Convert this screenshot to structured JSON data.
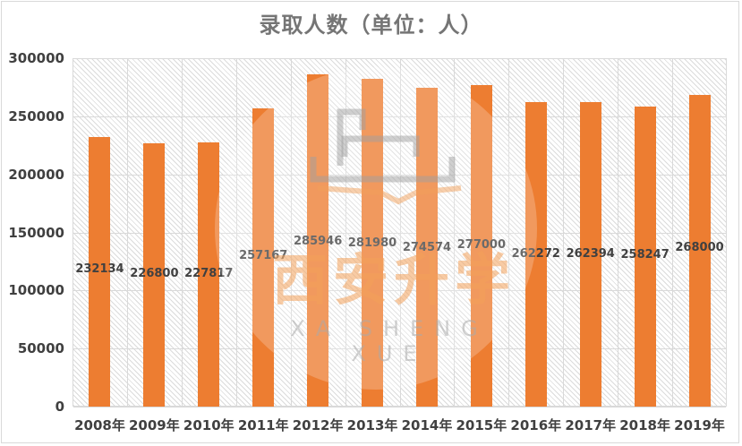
{
  "chart_data": {
    "type": "bar",
    "title": "录取人数（单位：人）",
    "xlabel": "",
    "ylabel": "",
    "ylim": [
      0,
      300000
    ],
    "yticks": [
      "0",
      "50000",
      "100000",
      "150000",
      "200000",
      "250000",
      "300000"
    ],
    "categories": [
      "2008年",
      "2009年",
      "2010年",
      "2011年",
      "2012年",
      "2013年",
      "2014年",
      "2015年",
      "2016年",
      "2017年",
      "2018年",
      "2019年"
    ],
    "values": [
      232134,
      226800,
      227817,
      257167,
      285946,
      281980,
      274574,
      277000,
      262272,
      262394,
      258247,
      268000
    ],
    "data_labels": [
      "232134",
      "226800",
      "227817",
      "257167",
      "285946",
      "281980",
      "274574",
      "277000",
      "262272",
      "262394",
      "258247",
      "268000"
    ],
    "bar_color": "#ED7D31",
    "grid": true,
    "legend": "none"
  },
  "watermark": {
    "chinese": "西安升学",
    "english": "XA SHENG XUE"
  }
}
